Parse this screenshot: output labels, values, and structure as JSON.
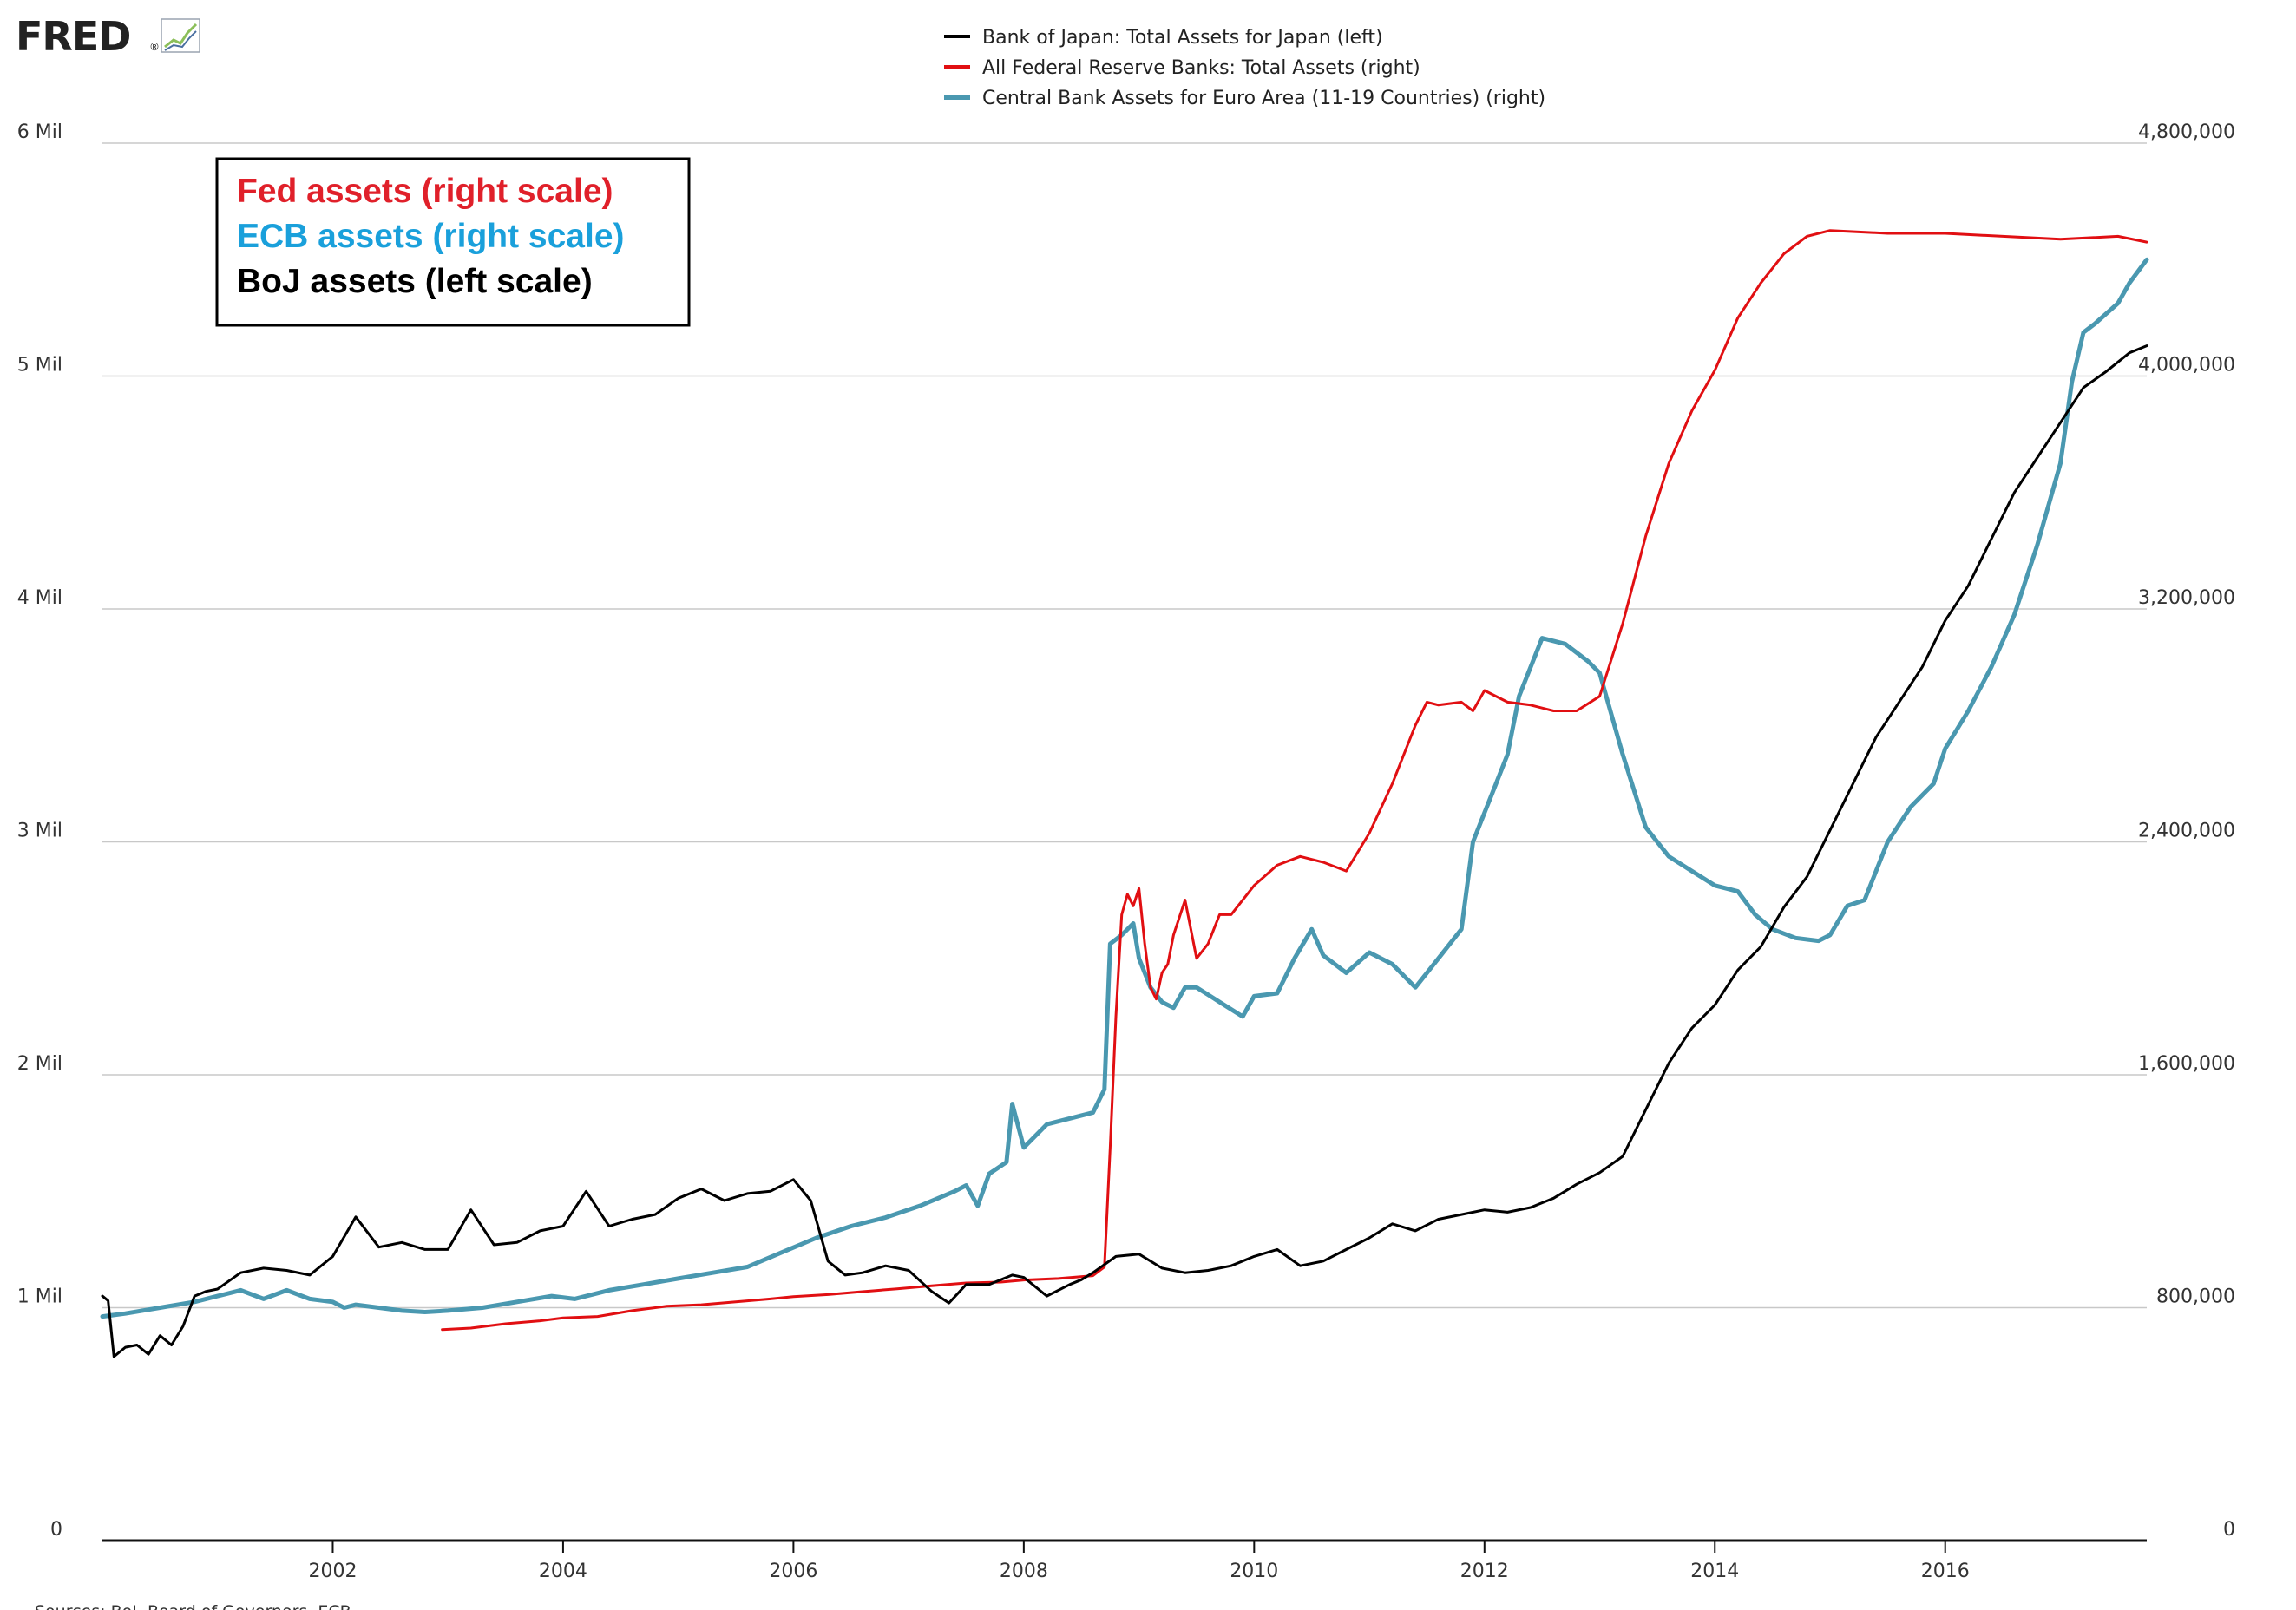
{
  "header": {
    "logo_text": "FRED",
    "logo_registered": "®",
    "logo_icon": "trend-graph-icon"
  },
  "source_note": "Sources: BoJ, Board of Governors, ECB",
  "annotation": {
    "lines": [
      {
        "text": "Fed assets  (right scale)",
        "color": "#e0202a"
      },
      {
        "text": "ECB assets (right scale)",
        "color": "#1aa0db"
      },
      {
        "text": "BoJ assets (left scale)",
        "color": "#000000"
      }
    ]
  },
  "chart_data": {
    "type": "line",
    "title": "",
    "xlabel": "",
    "ylabel_left": "",
    "ylabel_right": "",
    "x_range": [
      2000.0,
      2017.75
    ],
    "x_ticks": [
      2002,
      2004,
      2006,
      2008,
      2010,
      2012,
      2014,
      2016
    ],
    "x_tick_labels": [
      "2002",
      "2004",
      "2006",
      "2008",
      "2010",
      "2012",
      "2014",
      "2016"
    ],
    "y_left": {
      "range": [
        0,
        6
      ],
      "ticks": [
        0,
        1,
        2,
        3,
        4,
        5,
        6
      ],
      "tick_labels": [
        "0",
        "1 Mil",
        "2 Mil",
        "3 Mil",
        "4 Mil",
        "5 Mil",
        "6 Mil"
      ]
    },
    "y_right": {
      "range": [
        0,
        4800000
      ],
      "ticks": [
        0,
        800000,
        1600000,
        2400000,
        3200000,
        4000000,
        4800000
      ],
      "tick_labels": [
        "0",
        "800,000",
        "1,600,000",
        "2,400,000",
        "3,200,000",
        "4,000,000",
        "4,800,000"
      ]
    },
    "grid": true,
    "legend_position": "top-center",
    "series": [
      {
        "name": "Bank of Japan: Total Assets for Japan (left)",
        "axis": "left",
        "color": "#000000",
        "x": [
          2000.0,
          2000.05,
          2000.1,
          2000.2,
          2000.3,
          2000.4,
          2000.5,
          2000.6,
          2000.7,
          2000.8,
          2000.9,
          2001.0,
          2001.2,
          2001.4,
          2001.6,
          2001.8,
          2002.0,
          2002.2,
          2002.4,
          2002.6,
          2002.8,
          2003.0,
          2003.2,
          2003.4,
          2003.6,
          2003.8,
          2004.0,
          2004.2,
          2004.4,
          2004.6,
          2004.8,
          2005.0,
          2005.2,
          2005.4,
          2005.6,
          2005.8,
          2006.0,
          2006.15,
          2006.3,
          2006.45,
          2006.6,
          2006.8,
          2007.0,
          2007.2,
          2007.35,
          2007.5,
          2007.7,
          2007.9,
          2008.0,
          2008.2,
          2008.4,
          2008.5,
          2008.6,
          2008.8,
          2009.0,
          2009.2,
          2009.4,
          2009.6,
          2009.8,
          2010.0,
          2010.2,
          2010.4,
          2010.6,
          2010.8,
          2011.0,
          2011.2,
          2011.4,
          2011.6,
          2011.8,
          2012.0,
          2012.2,
          2012.4,
          2012.6,
          2012.8,
          2013.0,
          2013.2,
          2013.4,
          2013.6,
          2013.8,
          2014.0,
          2014.2,
          2014.4,
          2014.6,
          2014.8,
          2015.0,
          2015.2,
          2015.4,
          2015.6,
          2015.8,
          2016.0,
          2016.2,
          2016.4,
          2016.6,
          2016.8,
          2017.0,
          2017.2,
          2017.4,
          2017.6,
          2017.75
        ],
        "y": [
          1.05,
          1.03,
          0.79,
          0.83,
          0.84,
          0.8,
          0.88,
          0.84,
          0.92,
          1.05,
          1.07,
          1.08,
          1.15,
          1.17,
          1.16,
          1.14,
          1.22,
          1.39,
          1.26,
          1.28,
          1.25,
          1.25,
          1.42,
          1.27,
          1.28,
          1.33,
          1.35,
          1.5,
          1.35,
          1.38,
          1.4,
          1.47,
          1.51,
          1.46,
          1.49,
          1.5,
          1.55,
          1.46,
          1.2,
          1.14,
          1.15,
          1.18,
          1.16,
          1.07,
          1.02,
          1.1,
          1.1,
          1.14,
          1.13,
          1.05,
          1.1,
          1.12,
          1.15,
          1.22,
          1.23,
          1.17,
          1.15,
          1.16,
          1.18,
          1.22,
          1.25,
          1.18,
          1.2,
          1.25,
          1.3,
          1.36,
          1.33,
          1.38,
          1.4,
          1.42,
          1.41,
          1.43,
          1.47,
          1.53,
          1.58,
          1.65,
          1.85,
          2.05,
          2.2,
          2.3,
          2.45,
          2.55,
          2.72,
          2.85,
          3.05,
          3.25,
          3.45,
          3.6,
          3.75,
          3.95,
          4.1,
          4.3,
          4.5,
          4.65,
          4.8,
          4.95,
          5.02,
          5.1,
          5.13
        ]
      },
      {
        "name": "All Federal Reserve Banks: Total Assets (right)",
        "axis": "right",
        "color": "#e10f12",
        "x": [
          2002.95,
          2003.2,
          2003.5,
          2003.8,
          2004.0,
          2004.3,
          2004.6,
          2004.9,
          2005.2,
          2005.5,
          2005.8,
          2006.0,
          2006.3,
          2006.6,
          2006.9,
          2007.2,
          2007.5,
          2007.8,
          2008.0,
          2008.3,
          2008.6,
          2008.7,
          2008.75,
          2008.8,
          2008.85,
          2008.9,
          2008.95,
          2009.0,
          2009.05,
          2009.1,
          2009.15,
          2009.2,
          2009.25,
          2009.3,
          2009.4,
          2009.5,
          2009.6,
          2009.7,
          2009.8,
          2010.0,
          2010.2,
          2010.4,
          2010.6,
          2010.8,
          2011.0,
          2011.2,
          2011.4,
          2011.5,
          2011.6,
          2011.8,
          2011.9,
          2012.0,
          2012.2,
          2012.4,
          2012.6,
          2012.8,
          2013.0,
          2013.2,
          2013.4,
          2013.6,
          2013.8,
          2014.0,
          2014.2,
          2014.4,
          2014.6,
          2014.8,
          2015.0,
          2015.5,
          2016.0,
          2016.5,
          2017.0,
          2017.5,
          2017.75
        ],
        "y": [
          725000,
          730000,
          745000,
          755000,
          765000,
          770000,
          790000,
          805000,
          810000,
          820000,
          830000,
          838000,
          845000,
          855000,
          865000,
          875000,
          885000,
          888000,
          895000,
          900000,
          910000,
          940000,
          1350000,
          1800000,
          2150000,
          2220000,
          2180000,
          2240000,
          2050000,
          1900000,
          1860000,
          1950000,
          1980000,
          2080000,
          2200000,
          2000000,
          2050000,
          2150000,
          2150000,
          2250000,
          2320000,
          2350000,
          2330000,
          2300000,
          2430000,
          2600000,
          2800000,
          2880000,
          2870000,
          2880000,
          2850000,
          2920000,
          2880000,
          2870000,
          2850000,
          2850000,
          2900000,
          3150000,
          3450000,
          3700000,
          3880000,
          4020000,
          4200000,
          4320000,
          4420000,
          4480000,
          4500000,
          4490000,
          4490000,
          4480000,
          4470000,
          4480000,
          4460000
        ]
      },
      {
        "name": "Central Bank Assets for Euro Area (11-19 Countries) (right)",
        "axis": "right",
        "color": "#4a98b0",
        "x": [
          2000.0,
          2000.2,
          2000.5,
          2000.8,
          2001.0,
          2001.2,
          2001.4,
          2001.6,
          2001.8,
          2002.0,
          2002.1,
          2002.2,
          2002.4,
          2002.6,
          2002.8,
          2003.0,
          2003.3,
          2003.6,
          2003.9,
          2004.1,
          2004.4,
          2004.7,
          2005.0,
          2005.3,
          2005.6,
          2005.9,
          2006.2,
          2006.5,
          2006.8,
          2007.1,
          2007.4,
          2007.5,
          2007.6,
          2007.7,
          2007.85,
          2007.9,
          2008.0,
          2008.2,
          2008.4,
          2008.6,
          2008.7,
          2008.75,
          2008.85,
          2008.95,
          2009.0,
          2009.1,
          2009.2,
          2009.3,
          2009.4,
          2009.5,
          2009.7,
          2009.9,
          2010.0,
          2010.2,
          2010.35,
          2010.5,
          2010.6,
          2010.8,
          2011.0,
          2011.2,
          2011.4,
          2011.6,
          2011.8,
          2011.9,
          2012.0,
          2012.1,
          2012.2,
          2012.3,
          2012.5,
          2012.7,
          2012.9,
          2013.0,
          2013.2,
          2013.4,
          2013.6,
          2013.8,
          2014.0,
          2014.2,
          2014.35,
          2014.5,
          2014.7,
          2014.9,
          2015.0,
          2015.15,
          2015.3,
          2015.5,
          2015.7,
          2015.9,
          2016.0,
          2016.2,
          2016.4,
          2016.6,
          2016.8,
          2017.0,
          2017.1,
          2017.2,
          2017.3,
          2017.5,
          2017.6,
          2017.75
        ],
        "y": [
          770000,
          780000,
          800000,
          820000,
          840000,
          860000,
          830000,
          860000,
          830000,
          820000,
          800000,
          810000,
          800000,
          790000,
          785000,
          790000,
          800000,
          820000,
          840000,
          830000,
          860000,
          880000,
          900000,
          920000,
          940000,
          990000,
          1040000,
          1080000,
          1110000,
          1150000,
          1200000,
          1220000,
          1150000,
          1260000,
          1300000,
          1500000,
          1350000,
          1430000,
          1450000,
          1470000,
          1550000,
          2050000,
          2080000,
          2120000,
          2000000,
          1900000,
          1850000,
          1830000,
          1900000,
          1900000,
          1850000,
          1800000,
          1870000,
          1880000,
          2000000,
          2100000,
          2010000,
          1950000,
          2020000,
          1980000,
          1900000,
          2000000,
          2100000,
          2400000,
          2500000,
          2600000,
          2700000,
          2900000,
          3100000,
          3080000,
          3020000,
          2980000,
          2700000,
          2450000,
          2350000,
          2300000,
          2250000,
          2230000,
          2150000,
          2100000,
          2070000,
          2060000,
          2080000,
          2180000,
          2200000,
          2400000,
          2520000,
          2600000,
          2720000,
          2850000,
          3000000,
          3180000,
          3420000,
          3700000,
          3980000,
          4150000,
          4180000,
          4250000,
          4320000,
          4400000
        ]
      }
    ]
  }
}
